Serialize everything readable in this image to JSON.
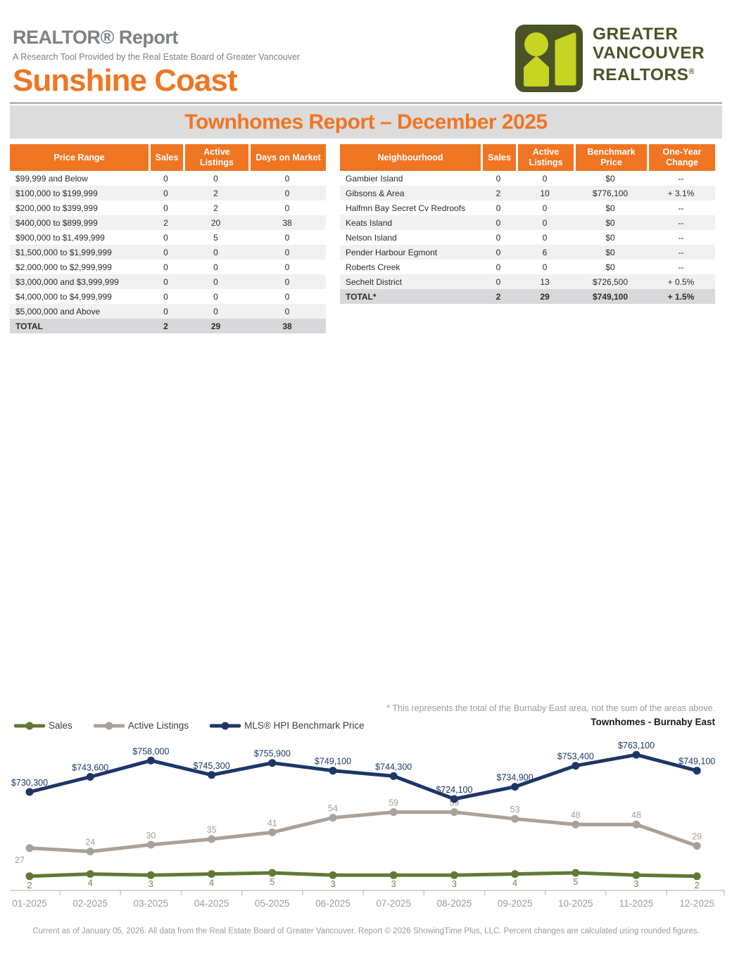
{
  "header": {
    "title": "REALTOR® Report",
    "subtitle": "A Research Tool Provided by the Real Estate Board of Greater Vancouver",
    "region": "Sunshine Coast",
    "logo": {
      "line1": "GREATER",
      "line2": "VANCOUVER",
      "line3": "REALTORS",
      "registered": "®"
    }
  },
  "band": {
    "title": "Townhomes Report – December 2025"
  },
  "price_table": {
    "headers": [
      "Price Range",
      "Sales",
      "Active Listings",
      "Days on Market"
    ],
    "rows": [
      [
        "$99,999 and Below",
        "0",
        "0",
        "0"
      ],
      [
        "$100,000 to $199,999",
        "0",
        "2",
        "0"
      ],
      [
        "$200,000 to $399,999",
        "0",
        "2",
        "0"
      ],
      [
        "$400,000 to $899,999",
        "2",
        "20",
        "38"
      ],
      [
        "$900,000 to $1,499,999",
        "0",
        "5",
        "0"
      ],
      [
        "$1,500,000 to $1,999,999",
        "0",
        "0",
        "0"
      ],
      [
        "$2,000,000 to $2,999,999",
        "0",
        "0",
        "0"
      ],
      [
        "$3,000,000 and $3,999,999",
        "0",
        "0",
        "0"
      ],
      [
        "$4,000,000 to $4,999,999",
        "0",
        "0",
        "0"
      ],
      [
        "$5,000,000 and Above",
        "0",
        "0",
        "0"
      ]
    ],
    "total_row": [
      "TOTAL",
      "2",
      "29",
      "38"
    ]
  },
  "neighbourhood_table": {
    "headers": [
      "Neighbourhood",
      "Sales",
      "Active Listings",
      "Benchmark Price",
      "One-Year Change"
    ],
    "rows": [
      [
        "Gambier Island",
        "0",
        "0",
        "$0",
        "--"
      ],
      [
        "Gibsons & Area",
        "2",
        "10",
        "$776,100",
        "+ 3.1%"
      ],
      [
        "Halfmn Bay Secret Cv Redroofs",
        "0",
        "0",
        "$0",
        "--"
      ],
      [
        "Keats Island",
        "0",
        "0",
        "$0",
        "--"
      ],
      [
        "Nelson Island",
        "0",
        "0",
        "$0",
        "--"
      ],
      [
        "Pender Harbour Egmont",
        "0",
        "6",
        "$0",
        "--"
      ],
      [
        "Roberts Creek",
        "0",
        "0",
        "$0",
        "--"
      ],
      [
        "Sechelt District",
        "0",
        "13",
        "$726,500",
        "+ 0.5%"
      ]
    ],
    "total_row": [
      "TOTAL*",
      "2",
      "29",
      "$749,100",
      "+ 1.5%"
    ]
  },
  "footnote": "* This represents the total of the Burnaby East area, not the sum of the areas above.",
  "chart_data": {
    "type": "line",
    "title": "Townhomes - Burnaby East",
    "x": [
      "01-2025",
      "02-2025",
      "03-2025",
      "04-2025",
      "05-2025",
      "06-2025",
      "07-2025",
      "08-2025",
      "09-2025",
      "10-2025",
      "11-2025",
      "12-2025"
    ],
    "series": [
      {
        "name": "Sales",
        "axis": "count",
        "color": "#5f7a33",
        "label_color": "#71814c",
        "label_position": "below",
        "values": [
          2,
          4,
          3,
          4,
          5,
          3,
          3,
          3,
          4,
          5,
          3,
          2
        ]
      },
      {
        "name": "Active Listings",
        "axis": "count",
        "color": "#a9a199",
        "label_color": "#a49c93",
        "label_position": "above",
        "values": [
          27,
          24,
          30,
          35,
          41,
          54,
          59,
          59,
          53,
          48,
          48,
          29
        ]
      },
      {
        "name": "MLS® HPI Benchmark Price",
        "axis": "price",
        "color": "#1c3667",
        "label_color": "#1c3667",
        "label_position": "above",
        "format": "currency",
        "values": [
          730300,
          743600,
          758000,
          745300,
          755900,
          749100,
          744300,
          724100,
          734900,
          753400,
          763100,
          749100
        ]
      }
    ],
    "legend_position": "top-left",
    "grid": false,
    "count_axis_range": [
      0,
      65
    ],
    "price_axis_range": [
      715000,
      772000
    ]
  },
  "footer": "Current as of January 05, 2026. All data from the Real Estate Board of Greater Vancouver.  Report © 2026 ShowingTime Plus, LLC. Percent changes are calculated using rounded figures.",
  "colors": {
    "accent_orange": "#f07522",
    "band_gray": "#dcdcdd",
    "navy": "#1c3667",
    "olive": "#5f7a33",
    "taupe": "#a9a199",
    "logo_dark": "#4a5326",
    "logo_lime": "#c6d422"
  }
}
